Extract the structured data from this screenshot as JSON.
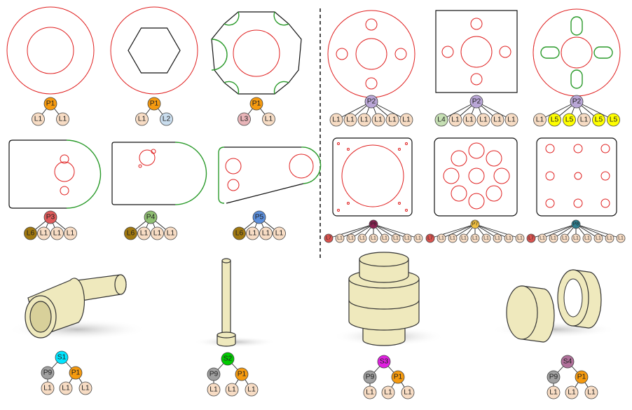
{
  "trees": [
    {
      "label": "P1",
      "color": "#f59a0f",
      "children": [
        {
          "label": "L1",
          "color": "#f7dcc4"
        },
        {
          "label": "L1",
          "color": "#f7dcc4"
        }
      ]
    },
    {
      "label": "P1",
      "color": "#f59a0f",
      "children": [
        {
          "label": "L1",
          "color": "#f7dcc4"
        },
        {
          "label": "L2",
          "color": "#c9ddee"
        }
      ]
    },
    {
      "label": "P1",
      "color": "#f59a0f",
      "children": [
        {
          "label": "L3",
          "color": "#e8b4b8"
        },
        {
          "label": "L1",
          "color": "#f7dcc4"
        }
      ]
    },
    {
      "label": "P2",
      "color": "#b9a6d6",
      "children": [
        {
          "label": "L1",
          "color": "#f7dcc4"
        },
        {
          "label": "L1",
          "color": "#f7dcc4"
        },
        {
          "label": "L1",
          "color": "#f7dcc4"
        },
        {
          "label": "L1",
          "color": "#f7dcc4"
        },
        {
          "label": "L1",
          "color": "#f7dcc4"
        },
        {
          "label": "L1",
          "color": "#f7dcc4"
        }
      ]
    },
    {
      "label": "P2",
      "color": "#b9a6d6",
      "children": [
        {
          "label": "L4",
          "color": "#c6e0b4"
        },
        {
          "label": "L1",
          "color": "#f7dcc4"
        },
        {
          "label": "L1",
          "color": "#f7dcc4"
        },
        {
          "label": "L1",
          "color": "#f7dcc4"
        },
        {
          "label": "L1",
          "color": "#f7dcc4"
        },
        {
          "label": "L1",
          "color": "#f7dcc4"
        }
      ]
    },
    {
      "label": "P2",
      "color": "#b9a6d6",
      "children": [
        {
          "label": "L1",
          "color": "#f7dcc4"
        },
        {
          "label": "L5",
          "color": "#ffff00"
        },
        {
          "label": "L5",
          "color": "#ffff00"
        },
        {
          "label": "L1",
          "color": "#f7dcc4"
        },
        {
          "label": "L5",
          "color": "#ffff00"
        },
        {
          "label": "L5",
          "color": "#ffff00"
        }
      ]
    },
    {
      "label": "P3",
      "color": "#e05a5a",
      "children": [
        {
          "label": "L6",
          "color": "#a07810"
        },
        {
          "label": "L1",
          "color": "#f7dcc4"
        },
        {
          "label": "L1",
          "color": "#f7dcc4"
        },
        {
          "label": "L1",
          "color": "#f7dcc4"
        }
      ]
    },
    {
      "label": "P4",
      "color": "#8fbf72",
      "children": [
        {
          "label": "L6",
          "color": "#a07810"
        },
        {
          "label": "L1",
          "color": "#f7dcc4"
        },
        {
          "label": "L1",
          "color": "#f7dcc4"
        },
        {
          "label": "L1",
          "color": "#f7dcc4"
        }
      ]
    },
    {
      "label": "P5",
      "color": "#5b8fdd",
      "children": [
        {
          "label": "L6",
          "color": "#a07810"
        },
        {
          "label": "L1",
          "color": "#f7dcc4"
        },
        {
          "label": "L1",
          "color": "#f7dcc4"
        },
        {
          "label": "L1",
          "color": "#f7dcc4"
        }
      ]
    },
    {
      "label": "P6",
      "color": "#8b2252",
      "children": [
        {
          "label": "L7",
          "color": "#d9534f"
        },
        {
          "label": "L1",
          "color": "#f7dcc4"
        },
        {
          "label": "L1",
          "color": "#f7dcc4"
        },
        {
          "label": "L1",
          "color": "#f7dcc4"
        },
        {
          "label": "L1",
          "color": "#f7dcc4"
        },
        {
          "label": "L1",
          "color": "#f7dcc4"
        },
        {
          "label": "L1",
          "color": "#f7dcc4"
        },
        {
          "label": "L1",
          "color": "#f7dcc4"
        },
        {
          "label": "L1",
          "color": "#f7dcc4"
        }
      ]
    },
    {
      "label": "P7",
      "color": "#f0c040",
      "children": [
        {
          "label": "L7",
          "color": "#d9534f"
        },
        {
          "label": "L1",
          "color": "#f7dcc4"
        },
        {
          "label": "L1",
          "color": "#f7dcc4"
        },
        {
          "label": "L1",
          "color": "#f7dcc4"
        },
        {
          "label": "L1",
          "color": "#f7dcc4"
        },
        {
          "label": "L1",
          "color": "#f7dcc4"
        },
        {
          "label": "L1",
          "color": "#f7dcc4"
        },
        {
          "label": "L1",
          "color": "#f7dcc4"
        },
        {
          "label": "L1",
          "color": "#f7dcc4"
        }
      ]
    },
    {
      "label": "P8",
      "color": "#2f7f8f",
      "children": [
        {
          "label": "L7",
          "color": "#d9534f"
        },
        {
          "label": "L1",
          "color": "#f7dcc4"
        },
        {
          "label": "L1",
          "color": "#f7dcc4"
        },
        {
          "label": "L1",
          "color": "#f7dcc4"
        },
        {
          "label": "L1",
          "color": "#f7dcc4"
        },
        {
          "label": "L1",
          "color": "#f7dcc4"
        },
        {
          "label": "L1",
          "color": "#f7dcc4"
        },
        {
          "label": "L1",
          "color": "#f7dcc4"
        },
        {
          "label": "L1",
          "color": "#f7dcc4"
        }
      ]
    },
    {
      "label": "S1",
      "color": "#00e5ff",
      "children": [
        {
          "label": "P9",
          "color": "#a0a0a0",
          "children": [
            {
              "label": "L1",
              "color": "#f7dcc4"
            }
          ]
        },
        {
          "label": "P1",
          "color": "#f59a0f",
          "children": [
            {
              "label": "L1",
              "color": "#f7dcc4"
            },
            {
              "label": "L1",
              "color": "#f7dcc4"
            }
          ]
        }
      ]
    },
    {
      "label": "S2",
      "color": "#00cc00",
      "children": [
        {
          "label": "P9",
          "color": "#a0a0a0",
          "children": [
            {
              "label": "L1",
              "color": "#f7dcc4"
            }
          ]
        },
        {
          "label": "P1",
          "color": "#f59a0f",
          "children": [
            {
              "label": "L1",
              "color": "#f7dcc4"
            },
            {
              "label": "L1",
              "color": "#f7dcc4"
            }
          ]
        }
      ]
    },
    {
      "label": "S3",
      "color": "#e020e0",
      "children": [
        {
          "label": "P9",
          "color": "#a0a0a0",
          "children": [
            {
              "label": "L1",
              "color": "#f7dcc4"
            }
          ]
        },
        {
          "label": "P1",
          "color": "#f59a0f",
          "children": [
            {
              "label": "L1",
              "color": "#f7dcc4"
            },
            {
              "label": "L1",
              "color": "#f7dcc4"
            }
          ]
        }
      ]
    },
    {
      "label": "S4",
      "color": "#b0709a",
      "children": [
        {
          "label": "P9",
          "color": "#a0a0a0",
          "children": [
            {
              "label": "L1",
              "color": "#f7dcc4"
            }
          ]
        },
        {
          "label": "P1",
          "color": "#f59a0f",
          "children": [
            {
              "label": "L1",
              "color": "#f7dcc4"
            },
            {
              "label": "L1",
              "color": "#f7dcc4"
            }
          ]
        }
      ]
    }
  ]
}
